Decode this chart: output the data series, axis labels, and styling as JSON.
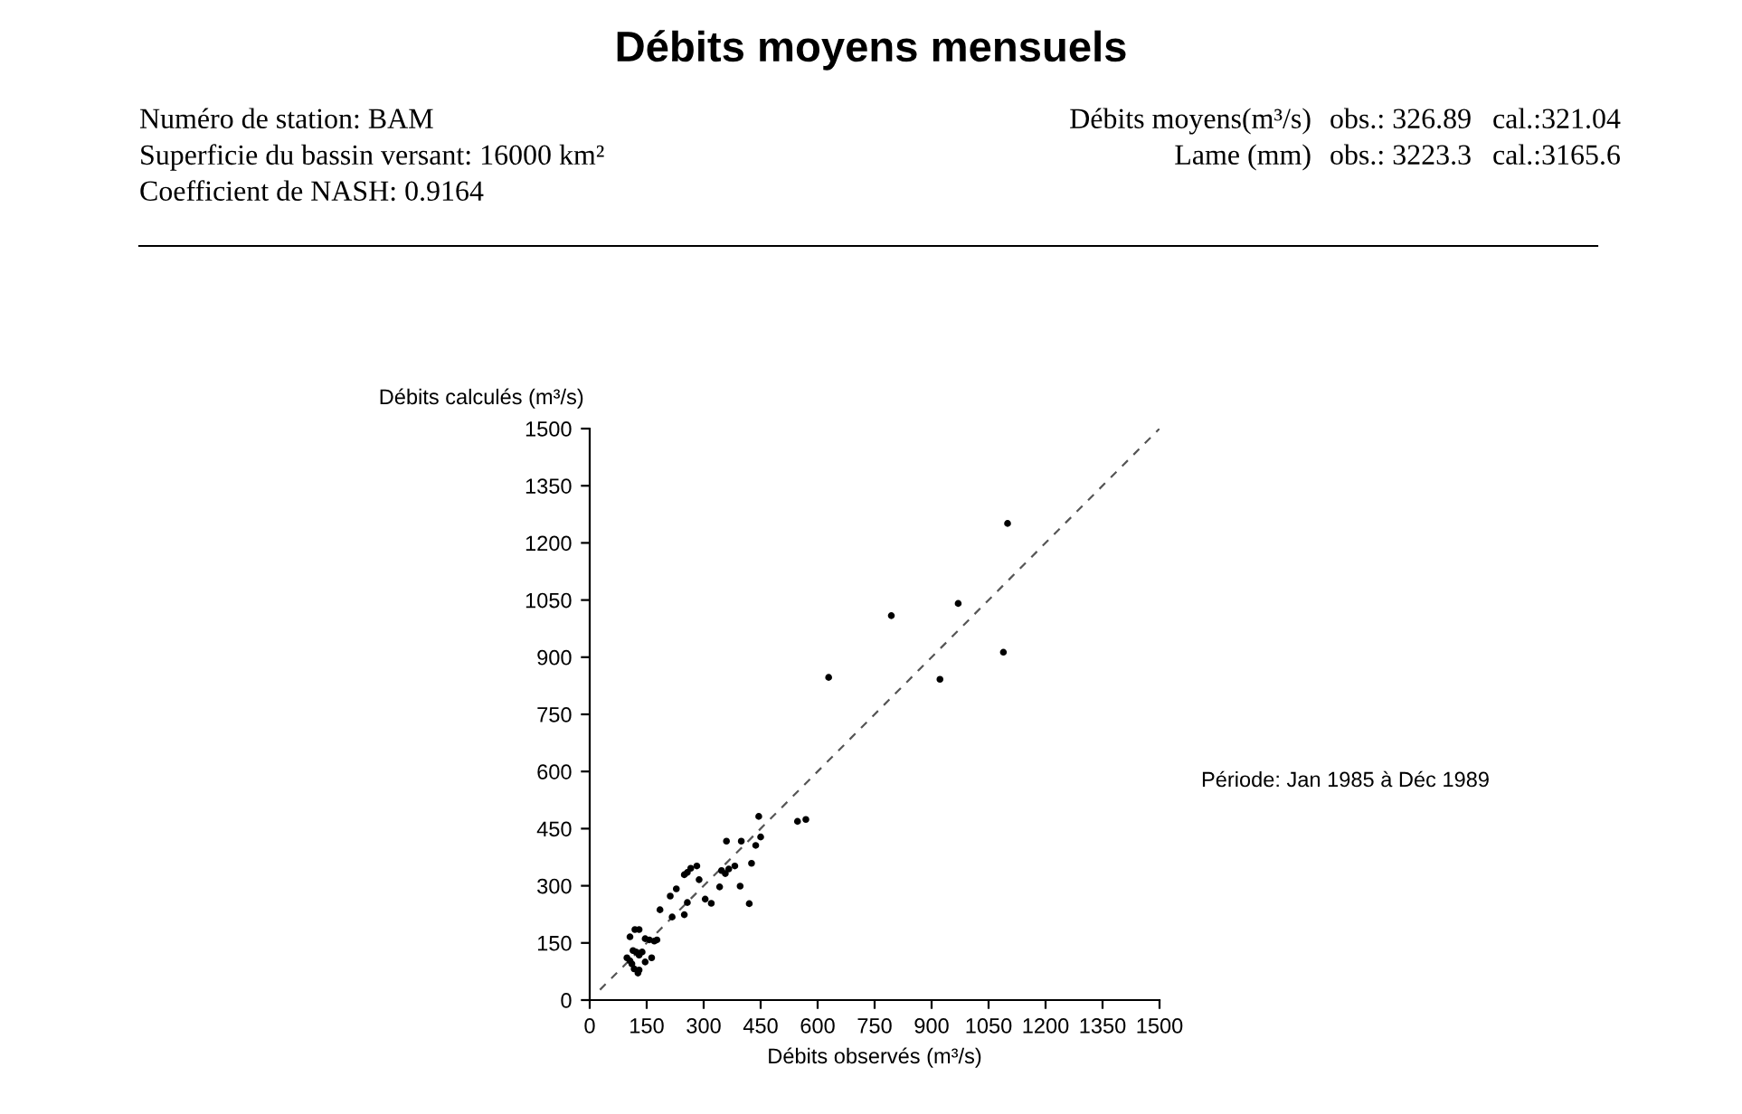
{
  "chart_data": {
    "type": "scatter",
    "title": "Débits moyens mensuels",
    "xlabel": "Débits observés (m³/s)",
    "ylabel": "Débits calculés (m³/s)",
    "annotations": [
      "Numéro de station: BAM",
      "Superficie du bassin versant: 16000 km²",
      "Coefficient de NASH: 0.9164",
      "Débits moyens(m³/s)",
      "obs.: 326.89",
      "cal.:321.04",
      "Lame (mm)",
      "obs.: 3223.3",
      "cal.:3165.6",
      "Période: Jan 1985 à Déc 1989"
    ],
    "series": [
      {
        "color": "#000000",
        "marker": "circle",
        "x": [
          1100,
          794,
          970,
          1089,
          629,
          922,
          547,
          569,
          445,
          450,
          437,
          426,
          399,
          360,
          396,
          420,
          382,
          366,
          347,
          357,
          342,
          282,
          266,
          257,
          249,
          288,
          304,
          320,
          257,
          249,
          212,
          228,
          217,
          185,
          106,
          119,
          130,
          146,
          157,
          170,
          177,
          163,
          146,
          114,
          122,
          106,
          111,
          117,
          130,
          130,
          98,
          127,
          138
        ],
        "values": [
          1251,
          1009,
          1041,
          913,
          847,
          842,
          469,
          474,
          482,
          428,
          406,
          359,
          417,
          417,
          299,
          253,
          352,
          344,
          340,
          332,
          297,
          352,
          346,
          335,
          329,
          316,
          265,
          254,
          256,
          224,
          273,
          292,
          218,
          237,
          166,
          185,
          185,
          161,
          158,
          155,
          158,
          111,
          100,
          130,
          126,
          103,
          95,
          82,
          79,
          118,
          111,
          71,
          126
        ]
      },
      {
        "type": "line",
        "color": "#555555",
        "line_style": "dashed",
        "marker": "none",
        "x": [
          27,
          1500
        ],
        "values": [
          27,
          1500
        ]
      }
    ],
    "xlim": [
      0,
      1500
    ],
    "ylim": [
      0,
      1500
    ],
    "xticks": [
      0,
      150,
      300,
      450,
      600,
      750,
      900,
      1050,
      1200,
      1350,
      1500
    ],
    "yticks": [
      0,
      150,
      300,
      450,
      600,
      750,
      900,
      1050,
      1200,
      1350,
      1500
    ],
    "grid": false,
    "legend": false
  }
}
